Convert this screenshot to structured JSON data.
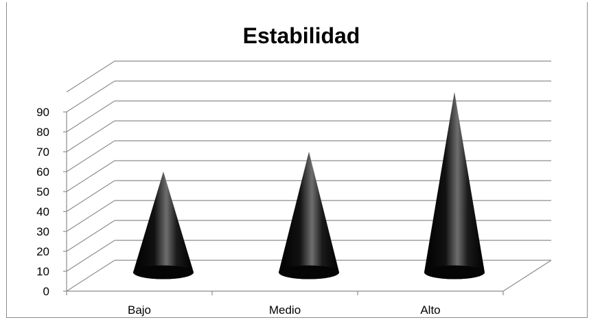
{
  "chart_data": {
    "type": "bar",
    "shape": "cone",
    "title": "Estabilidad",
    "categories": [
      "Bajo",
      "Medio",
      "Alto"
    ],
    "values": [
      54,
      64,
      94
    ],
    "ylim": [
      0,
      90
    ],
    "yticks": [
      "0",
      "10",
      "20",
      "30",
      "40",
      "50",
      "60",
      "70",
      "80",
      "90"
    ],
    "grid": true,
    "legend": "none",
    "colors": {
      "cone_dark": "#050505",
      "cone_light": "#6e6e6e",
      "grid": "#8c8c8c"
    }
  }
}
